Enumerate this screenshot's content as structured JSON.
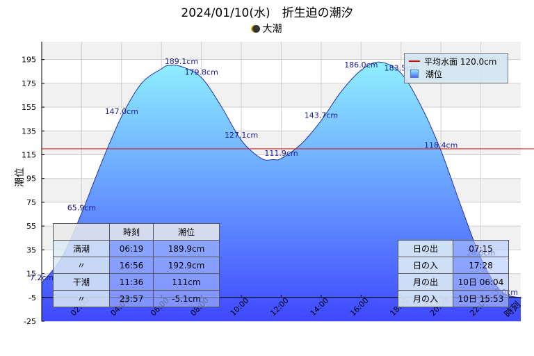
{
  "title": "2024/01/10(水)　折生迫の潮汐",
  "moon_phase": "大潮",
  "chart_data": {
    "type": "area",
    "ylabel": "潮位",
    "xlabel": "時刻",
    "ylim": [
      -25,
      210
    ],
    "xlim": [
      0,
      24
    ],
    "y_ticks": [
      -25,
      -5,
      15,
      35,
      55,
      75,
      95,
      115,
      135,
      155,
      175,
      195
    ],
    "x_ticks": [
      2,
      4,
      6,
      8,
      10,
      12,
      14,
      16,
      18,
      20,
      22
    ],
    "x_tick_labels": [
      "02:00",
      "04:00",
      "06:00",
      "08:00",
      "10:00",
      "12:00",
      "14:00",
      "16:00",
      "18:00",
      "20:00",
      "22:00"
    ],
    "mean_level": 120.0,
    "legend": {
      "mean_label": "平均水面 120.0cm",
      "series_label": "潮位",
      "placement": "top-right"
    },
    "series": [
      {
        "name": "潮位",
        "x": [
          0,
          1,
          2,
          3,
          4,
          5,
          6,
          6.32,
          7,
          8,
          9,
          10,
          11,
          11.6,
          12,
          13,
          14,
          15,
          16,
          16.93,
          18,
          19,
          20,
          21,
          22,
          23,
          23.95,
          24
        ],
        "y": [
          7.2,
          28.5,
          65.9,
          108.5,
          147.0,
          175.0,
          187.2,
          189.9,
          189.1,
          179.8,
          155.5,
          127.1,
          111.9,
          111.0,
          111.9,
          124.0,
          143.7,
          168.0,
          186.0,
          192.9,
          183.5,
          156.0,
          118.4,
          72.0,
          28.0,
          0.5,
          -5.1,
          -5.0
        ]
      }
    ],
    "point_labels": [
      {
        "x": 0,
        "y": 7.2,
        "text": "7.2cm"
      },
      {
        "x": 2,
        "y": 65.9,
        "text": "65.9cm"
      },
      {
        "x": 4,
        "y": 147.0,
        "text": "147.0cm"
      },
      {
        "x": 7,
        "y": 189.1,
        "text": "189.1cm"
      },
      {
        "x": 8,
        "y": 179.8,
        "text": "179.8cm"
      },
      {
        "x": 10,
        "y": 127.1,
        "text": "127.1cm"
      },
      {
        "x": 12,
        "y": 111.9,
        "text": "111.9cm"
      },
      {
        "x": 14,
        "y": 143.7,
        "text": "143.7cm"
      },
      {
        "x": 16,
        "y": 186.0,
        "text": "186.0cm"
      },
      {
        "x": 18,
        "y": 183.5,
        "text": "183.5cm"
      },
      {
        "x": 20,
        "y": 118.4,
        "text": "118.4cm"
      },
      {
        "x": 22,
        "y": 28.0,
        "text": "28.0cm"
      },
      {
        "x": 24,
        "y": -5.0,
        "text": "-5.0cm"
      }
    ]
  },
  "tide_table": {
    "headers": [
      "",
      "時刻",
      "潮位"
    ],
    "rows": [
      {
        "label": "満潮",
        "time": "06:19",
        "level": "189.9cm"
      },
      {
        "label": "〃",
        "time": "16:56",
        "level": "192.9cm"
      },
      {
        "label": "干潮",
        "time": "11:36",
        "level": "111cm"
      },
      {
        "label": "〃",
        "time": "23:57",
        "level": "-5.1cm"
      }
    ]
  },
  "sun_moon_table": [
    {
      "label": "日の出",
      "value": "07:15"
    },
    {
      "label": "日の入",
      "value": "17:28"
    },
    {
      "label": "月の出",
      "value": "10日 06:04"
    },
    {
      "label": "月の入",
      "value": "10日 15:53"
    }
  ],
  "colors": {
    "mean_line": "#e00000",
    "area_top": "#8ff0ff",
    "area_bottom": "#3f48ff",
    "curve": "#2233aa"
  }
}
